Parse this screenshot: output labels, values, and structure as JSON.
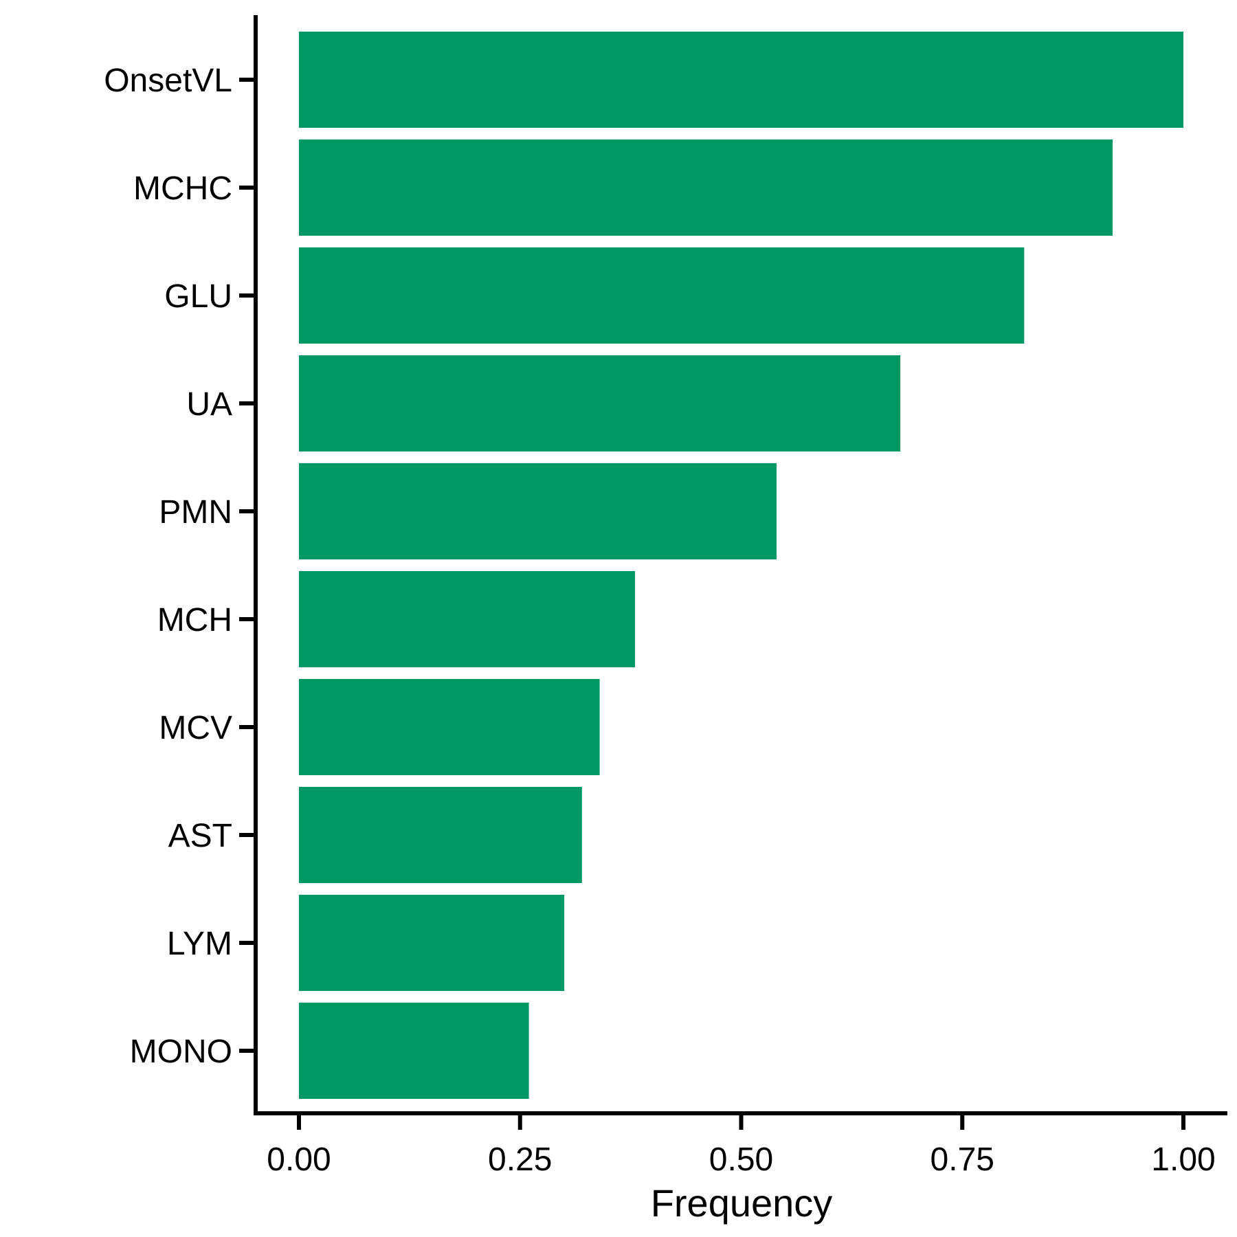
{
  "chart_data": {
    "type": "bar",
    "orientation": "horizontal",
    "categories": [
      "OnsetVL",
      "MCHC",
      "GLU",
      "UA",
      "PMN",
      "MCH",
      "MCV",
      "AST",
      "LYM",
      "MONO"
    ],
    "values": [
      1.0,
      0.92,
      0.82,
      0.68,
      0.54,
      0.38,
      0.34,
      0.32,
      0.3,
      0.26
    ],
    "xlabel": "Frequency",
    "ylabel": "",
    "xlim": [
      0,
      1
    ],
    "xticks": [
      "0.00",
      "0.25",
      "0.50",
      "0.75",
      "1.00"
    ],
    "grid": false,
    "bar_color": "#009966"
  }
}
